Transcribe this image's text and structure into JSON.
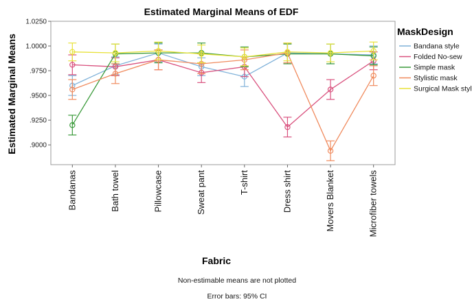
{
  "chart_data": {
    "type": "line",
    "title": "Estimated Marginal Means of EDF",
    "xlabel": "Fabric",
    "ylabel": "Estimated Marginal Means",
    "ylim": [
      0.88,
      1.025
    ],
    "yticks": [
      ".9000",
      ".9250",
      ".9500",
      ".9750",
      "1.0000",
      "1.0250"
    ],
    "categories": [
      "Bandanas",
      "Bath towel",
      "Pillowcase",
      "Sweat pant",
      "T-shirt",
      "Dress shirt",
      "Movers Blanket",
      "Microfiber towels"
    ],
    "legend_title": "MaskDesign",
    "legend_position": "right",
    "grid": false,
    "series": [
      {
        "name": "Bandana style",
        "color": "#7fb1d9",
        "values": [
          0.96,
          0.98,
          0.993,
          0.979,
          0.969,
          0.993,
          0.992,
          0.991
        ],
        "ci_half": [
          0.01,
          0.009,
          0.009,
          0.009,
          0.01,
          0.01,
          0.01,
          0.009
        ]
      },
      {
        "name": "Folded No-sew",
        "color": "#d9517e",
        "values": [
          0.981,
          0.979,
          0.986,
          0.973,
          0.979,
          0.918,
          0.956,
          0.985
        ],
        "ci_half": [
          0.01,
          0.009,
          0.01,
          0.01,
          0.01,
          0.01,
          0.01,
          0.009
        ]
      },
      {
        "name": "Simple mask",
        "color": "#3a9a3a",
        "values": [
          0.92,
          0.992,
          0.993,
          0.993,
          0.989,
          0.992,
          0.992,
          0.99
        ],
        "ci_half": [
          0.01,
          0.01,
          0.01,
          0.01,
          0.01,
          0.01,
          0.01,
          0.009
        ]
      },
      {
        "name": "Stylistic mask",
        "color": "#f08a5d",
        "values": [
          0.956,
          0.972,
          0.986,
          0.982,
          0.986,
          0.993,
          0.894,
          0.97
        ],
        "ci_half": [
          0.01,
          0.01,
          0.01,
          0.01,
          0.01,
          0.01,
          0.01,
          0.01
        ]
      },
      {
        "name": "Surgical Mask style",
        "color": "#e8e23a",
        "values": [
          0.994,
          0.993,
          0.995,
          0.992,
          0.989,
          0.994,
          0.993,
          0.995
        ],
        "ci_half": [
          0.009,
          0.009,
          0.009,
          0.009,
          0.009,
          0.009,
          0.009,
          0.009
        ]
      }
    ]
  },
  "footnotes": {
    "note1": "Non-estimable means are not plotted",
    "note2": "Error bars: 95% CI"
  }
}
